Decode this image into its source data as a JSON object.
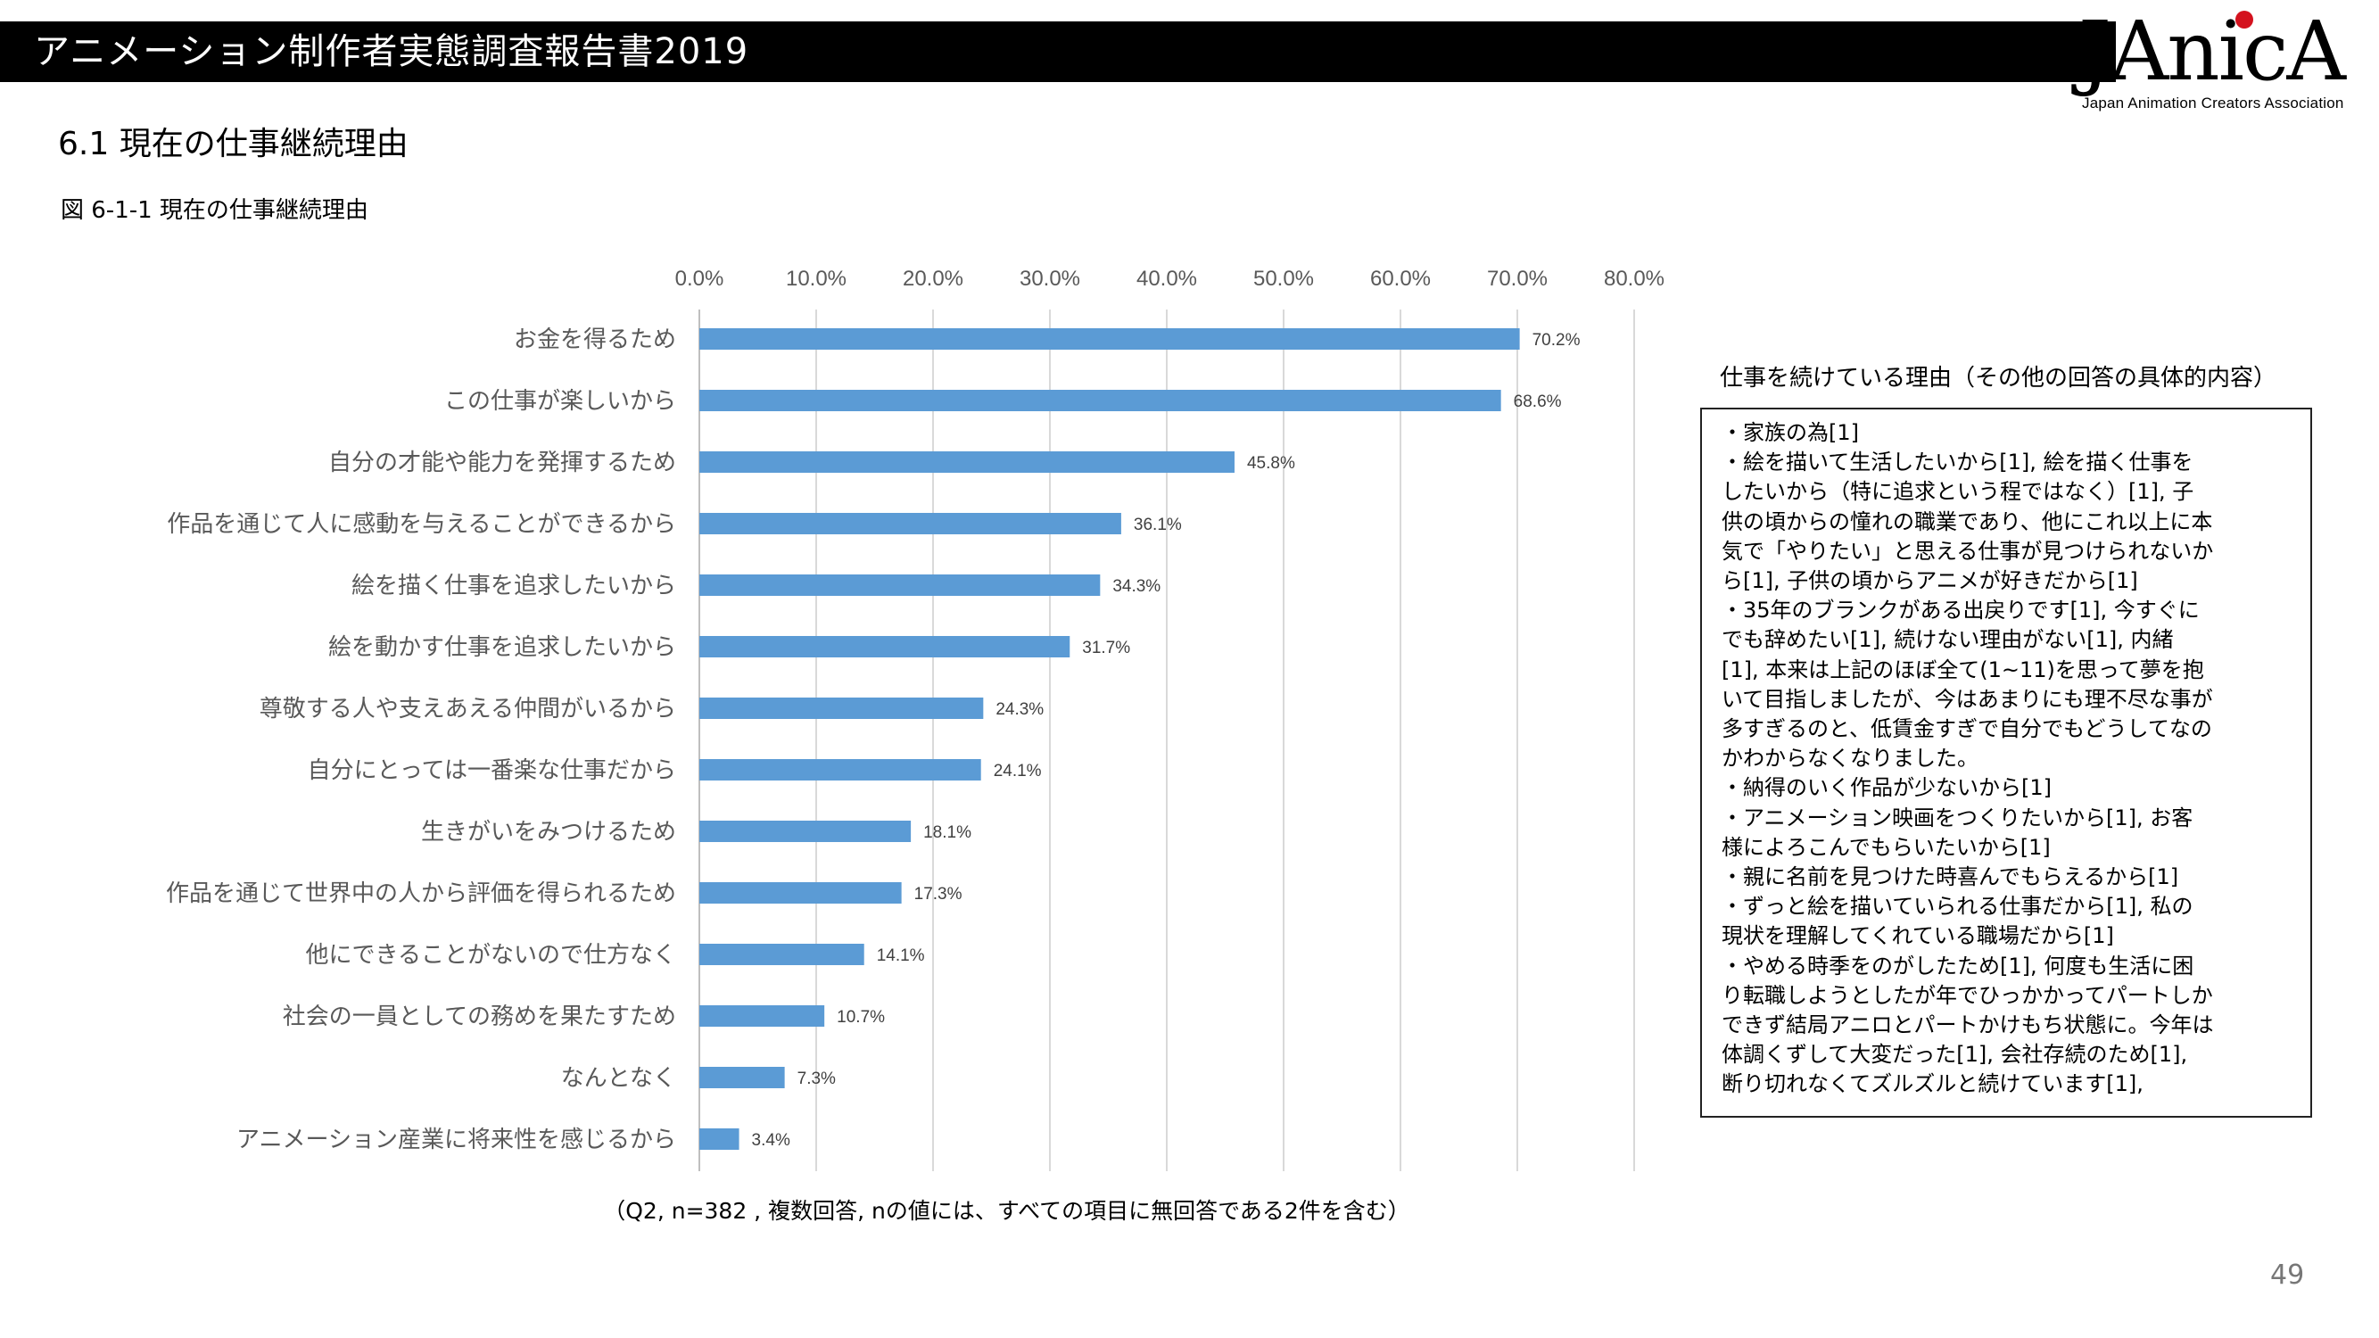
{
  "header": {
    "title": "アニメーション制作者実態調査報告書2019"
  },
  "logo": {
    "wordmark": "JAnicA",
    "subtitle": "Japan Animation Creators Association"
  },
  "section_title": "6.1  現在の仕事継続理由",
  "figure_title": "図 6-1-1  現在の仕事継続理由",
  "chart_data": {
    "type": "bar",
    "orientation": "horizontal",
    "categories": [
      "お金を得るため",
      "この仕事が楽しいから",
      "自分の才能や能力を発揮するため",
      "作品を通じて人に感動を与えることができるから",
      "絵を描く仕事を追求したいから",
      "絵を動かす仕事を追求したいから",
      "尊敬する人や支えあえる仲間がいるから",
      "自分にとっては一番楽な仕事だから",
      "生きがいをみつけるため",
      "作品を通じて世界中の人から評価を得られるため",
      "他にできることがないので仕方なく",
      "社会の一員としての務めを果たすため",
      "なんとなく",
      "アニメーション産業に将来性を感じるから"
    ],
    "values": [
      70.2,
      68.6,
      45.8,
      36.1,
      34.3,
      31.7,
      24.3,
      24.1,
      18.1,
      17.3,
      14.1,
      10.7,
      7.3,
      3.4
    ],
    "value_labels": [
      "70.2%",
      "68.6%",
      "45.8%",
      "36.1%",
      "34.3%",
      "31.7%",
      "24.3%",
      "24.1%",
      "18.1%",
      "17.3%",
      "14.1%",
      "10.7%",
      "7.3%",
      "3.4%"
    ],
    "xlim": [
      0,
      80
    ],
    "ticks": [
      0,
      10,
      20,
      30,
      40,
      50,
      60,
      70,
      80
    ],
    "tick_labels": [
      "0.0%",
      "10.0%",
      "20.0%",
      "30.0%",
      "40.0%",
      "50.0%",
      "60.0%",
      "70.0%",
      "80.0%"
    ],
    "axis_position": "top",
    "grid": true,
    "bar_color": "#5b9bd5"
  },
  "note": "（Q2,  n=382 ,  複数回答, nの値には、すべての項目に無回答である2件を含む）",
  "side_panel": {
    "title": "仕事を続けている理由（その他の回答の具体的内容）",
    "lines": [
      "・家族の為[1]",
      "・絵を描いて生活したいから[1], 絵を描く仕事を",
      "したいから（特に追求という程ではなく）[1], 子",
      "供の頃からの憧れの職業であり、他にこれ以上に本",
      "気で「やりたい」と思える仕事が見つけられないか",
      "ら[1], 子供の頃からアニメが好きだから[1]",
      "・35年のブランクがある出戻りです[1], 今すぐに",
      "でも辞めたい[1], 続けない理由がない[1], 内緒",
      "[1], 本来は上記のほぼ全て(1~11)を思って夢を抱",
      "いて目指しましたが、今はあまりにも理不尽な事が",
      "多すぎるのと、低賃金すぎで自分でもどうしてなの",
      "かわからなくなりました。",
      "・納得のいく作品が少ないから[1]",
      "・アニメーション映画をつくりたいから[1], お客",
      "様によろこんでもらいたいから[1]",
      "・親に名前を見つけた時喜んでもらえるから[1]",
      "・ずっと絵を描いていられる仕事だから[1], 私の",
      "現状を理解してくれている職場だから[1]",
      "・やめる時季をのがしたため[1], 何度も生活に困",
      "り転職しようとしたが年でひっかかってパートしか",
      "できず結局アニロとパートかけもち状態に。今年は",
      "体調くずして大変だった[1], 会社存続のため[1],",
      "断り切れなくてズルズルと続けています[1],"
    ]
  },
  "page_number": "49"
}
